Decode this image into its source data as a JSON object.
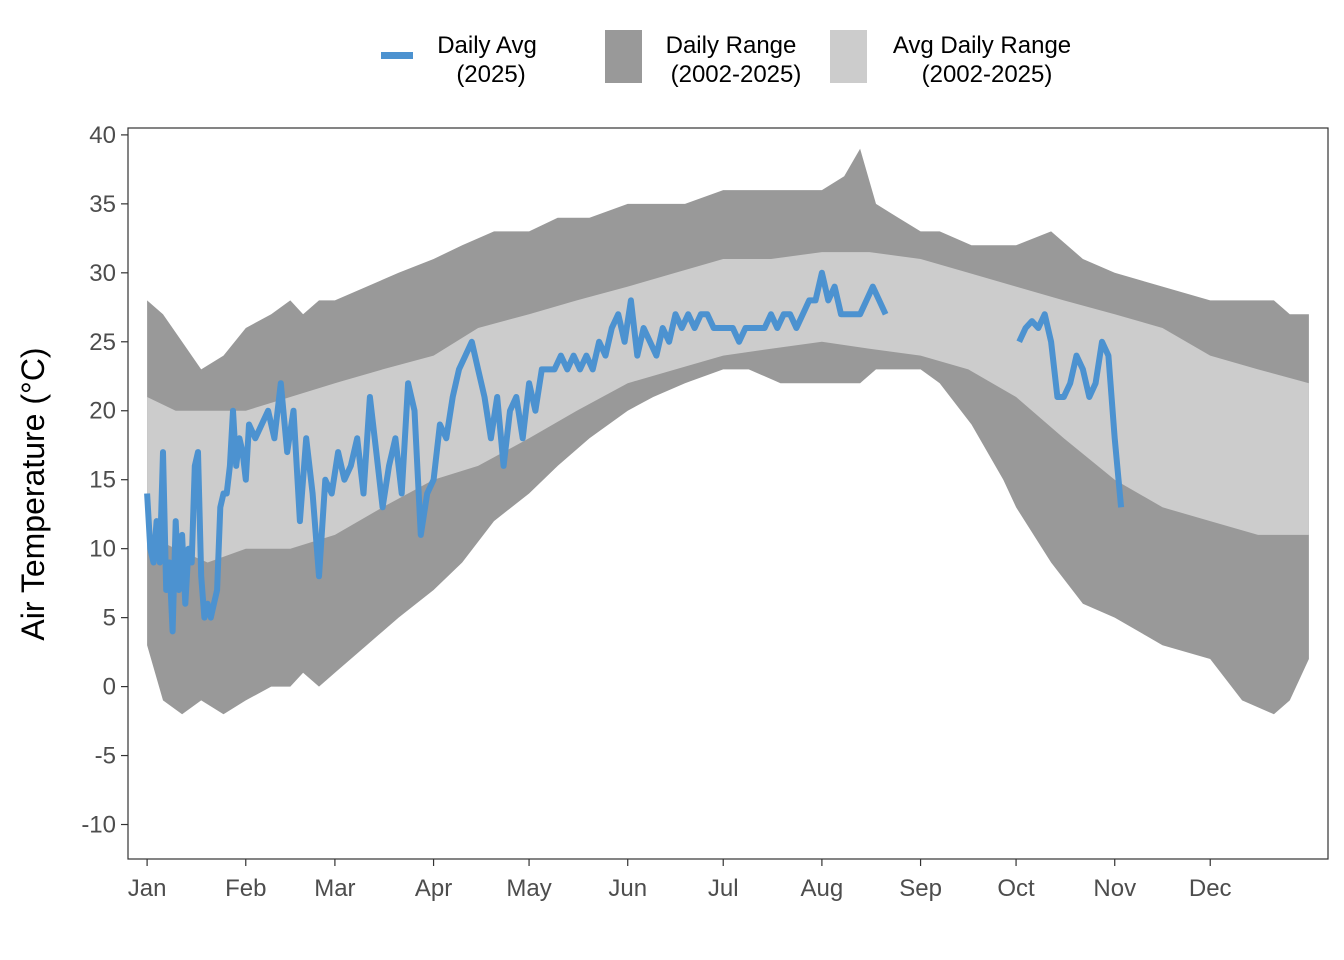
{
  "chart_data": {
    "type": "area",
    "title": "",
    "xlabel": "",
    "ylabel": "Air Temperature (°C)",
    "ylim": [
      -12.5,
      40.5
    ],
    "xlim_day": [
      -5,
      372
    ],
    "yticks": [
      40,
      35,
      30,
      25,
      20,
      15,
      10,
      5,
      0,
      -5,
      -10
    ],
    "ytick_labels": [
      "40",
      "35",
      "30",
      "25",
      "20",
      "15",
      "10",
      "5",
      "0",
      "-5",
      "-10"
    ],
    "months": [
      {
        "label": "Jan",
        "day": 1
      },
      {
        "label": "Feb",
        "day": 32
      },
      {
        "label": "Mar",
        "day": 60
      },
      {
        "label": "Apr",
        "day": 91
      },
      {
        "label": "May",
        "day": 121
      },
      {
        "label": "Jun",
        "day": 152
      },
      {
        "label": "Jul",
        "day": 182
      },
      {
        "label": "Aug",
        "day": 213
      },
      {
        "label": "Sep",
        "day": 244
      },
      {
        "label": "Oct",
        "day": 274
      },
      {
        "label": "Nov",
        "day": 305
      },
      {
        "label": "Dec",
        "day": 335
      }
    ],
    "legend": {
      "position": "top",
      "items": [
        {
          "key": "daily_avg",
          "line1": "Daily Avg",
          "line2": "(2025)",
          "color": "#4c92d0"
        },
        {
          "key": "daily_range",
          "line1": "Daily Range",
          "line2": "(2002-2025)",
          "color": "#999999"
        },
        {
          "key": "avg_range",
          "line1": "Avg Daily Range",
          "line2": "(2002-2025)",
          "color": "#cccccc"
        }
      ]
    },
    "series": [
      {
        "name": "Daily Range (2002-2025)",
        "color": "#999999",
        "x": [
          1,
          6,
          12,
          18,
          25,
          32,
          40,
          46,
          50,
          55,
          60,
          70,
          80,
          91,
          100,
          110,
          121,
          130,
          140,
          152,
          160,
          170,
          182,
          190,
          200,
          213,
          220,
          225,
          230,
          237,
          244,
          250,
          260,
          270,
          274,
          285,
          295,
          305,
          320,
          335,
          345,
          355,
          360,
          366
        ],
        "upper": [
          28,
          27,
          25,
          23,
          24,
          26,
          27,
          28,
          27,
          28,
          28,
          29,
          30,
          31,
          32,
          33,
          33,
          34,
          34,
          35,
          35,
          35,
          36,
          36,
          36,
          36,
          37,
          39,
          35,
          34,
          33,
          33,
          32,
          32,
          32,
          33,
          31,
          30,
          29,
          28,
          28,
          28,
          27,
          27
        ],
        "lower": [
          3,
          -1,
          -2,
          -1,
          -2,
          -1,
          0,
          0,
          1,
          0,
          1,
          3,
          5,
          7,
          9,
          12,
          14,
          16,
          18,
          20,
          21,
          22,
          23,
          23,
          22,
          22,
          22,
          22,
          23,
          23,
          23,
          22,
          19,
          15,
          13,
          9,
          6,
          5,
          3,
          2,
          -1,
          -2,
          -1,
          2
        ]
      },
      {
        "name": "Avg Daily Range (2002-2025)",
        "color": "#cccccc",
        "x": [
          1,
          10,
          20,
          32,
          46,
          60,
          75,
          91,
          105,
          121,
          136,
          152,
          167,
          182,
          197,
          213,
          228,
          244,
          259,
          274,
          289,
          305,
          320,
          335,
          350,
          366
        ],
        "upper": [
          21,
          20,
          20,
          20,
          21,
          22,
          23,
          24,
          26,
          27,
          28,
          29,
          30,
          31,
          31,
          31.5,
          31.5,
          31,
          30,
          29,
          28,
          27,
          26,
          24,
          23,
          22
        ],
        "lower": [
          11,
          10,
          9,
          10,
          10,
          11,
          13,
          15,
          16,
          18,
          20,
          22,
          23,
          24,
          24.5,
          25,
          24.5,
          24,
          23,
          21,
          18,
          15,
          13,
          12,
          11,
          11
        ]
      },
      {
        "name": "Daily Avg (2025)",
        "color": "#4c92d0",
        "segments": [
          {
            "x": [
              1,
              2,
              3,
              4,
              5,
              6,
              7,
              8,
              9,
              10,
              11,
              12,
              13,
              14,
              15,
              16,
              17,
              18,
              19,
              20,
              21,
              22,
              23,
              24,
              25,
              26,
              27,
              28,
              29,
              30,
              31,
              32,
              33,
              35,
              37,
              39,
              41,
              43,
              45,
              47,
              49,
              51,
              53,
              55,
              57,
              59,
              61,
              63,
              65,
              67,
              69,
              71,
              73,
              75,
              77,
              79,
              81,
              83,
              85,
              87,
              89,
              91,
              93,
              95,
              97,
              99,
              101,
              103,
              105,
              107,
              109,
              111,
              113,
              115,
              117,
              119,
              121,
              123,
              125,
              127,
              129,
              131,
              133,
              135,
              137,
              139,
              141,
              143,
              145,
              147,
              149,
              151,
              153,
              155,
              157,
              159,
              161,
              163,
              165,
              167,
              169,
              171,
              173,
              175,
              177,
              179,
              181,
              183,
              185,
              187,
              189,
              191,
              193,
              195,
              197,
              199,
              201,
              203,
              205,
              207,
              209,
              211,
              213,
              215,
              217,
              219,
              221,
              223,
              225,
              227,
              229,
              231,
              233
            ],
            "y": [
              14,
              10,
              9,
              12,
              9,
              17,
              7,
              9,
              4,
              12,
              7,
              11,
              6,
              10,
              9,
              16,
              17,
              8,
              5,
              6,
              5,
              6,
              7,
              13,
              14,
              14,
              16,
              20,
              16,
              18,
              17,
              15,
              19,
              18,
              19,
              20,
              18,
              22,
              17,
              20,
              12,
              18,
              14,
              8,
              15,
              14,
              17,
              15,
              16,
              18,
              14,
              21,
              17,
              13,
              16,
              18,
              14,
              22,
              20,
              11,
              14,
              15,
              19,
              18,
              21,
              23,
              24,
              25,
              23,
              21,
              18,
              21,
              16,
              20,
              21,
              18,
              22,
              20,
              23,
              23,
              23,
              24,
              23,
              24,
              23,
              24,
              23,
              25,
              24,
              26,
              27,
              25,
              28,
              24,
              26,
              25,
              24,
              26,
              25,
              27,
              26,
              27,
              26,
              27,
              27,
              26,
              26,
              26,
              26,
              25,
              26,
              26,
              26,
              26,
              27,
              26,
              27,
              27,
              26,
              27,
              28,
              28,
              30,
              28,
              29,
              27,
              27,
              27,
              27,
              28,
              29,
              28,
              27
            ]
          },
          {
            "x": [
              275,
              277,
              279,
              281,
              283,
              285,
              287,
              289,
              291,
              293,
              295,
              297,
              299,
              301,
              303,
              305,
              307
            ],
            "y": [
              25,
              26,
              26.5,
              26,
              27,
              25,
              21,
              21,
              22,
              24,
              23,
              21,
              22,
              25,
              24,
              18,
              13
            ]
          }
        ]
      }
    ]
  }
}
